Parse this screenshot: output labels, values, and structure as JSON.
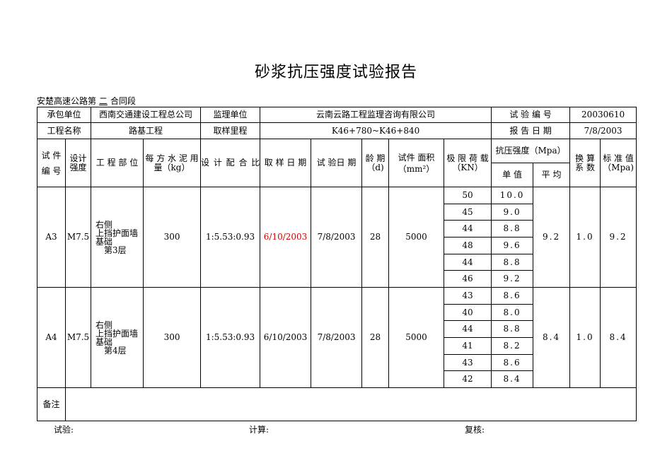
{
  "title": "砂浆抗压强度试验报告",
  "contract": {
    "prefix": "安楚高速公路第",
    "section": "二",
    "suffix": "合同段"
  },
  "info": {
    "contractor_label": "承包单位",
    "contractor": "西南交通建设工程总公司",
    "supervisor_label": "监理单位",
    "supervisor": "云南云路工程监理咨询有限公司",
    "test_no_label": "试 验 编 号",
    "test_no": "20030610",
    "project_label": "工程名称",
    "project": "路基工程",
    "station_label": "取样里程",
    "station": "K46+780~K46+840",
    "report_date_label": "报 告 日 期",
    "report_date": "7/8/2003"
  },
  "headers": {
    "id": "试 件 编 号",
    "grade": "设计 强度",
    "part": "工 程 部 位",
    "cement": "每 方 水 泥 用 量（kg）",
    "ratio": "设 计 配 合 比",
    "sample_date": "取 样 日 期",
    "test_date": "试 验日 期",
    "age": "龄 期（d)",
    "area": "试件 面积 （mm²）",
    "load": "极 限 荷 载（KN）",
    "strength": "抗压强度（Mpa）",
    "single": "单 值",
    "avg": "平 均",
    "factor": "换 算 系 数",
    "std": "标 准 值 （Mpa)"
  },
  "samples": [
    {
      "id": "A3",
      "grade": "M7.5",
      "part": [
        "右侧",
        "上挡护面墙",
        "基础",
        "第3层"
      ],
      "cement": "300",
      "ratio": "1:5.53:0.93",
      "sample_date": "6/10/2003",
      "sample_date_color": "#d00000",
      "test_date": "7/8/2003",
      "age": "28",
      "area": "5000",
      "loads": [
        "50",
        "45",
        "44",
        "48",
        "44",
        "46"
      ],
      "singles": [
        "10.0",
        "9.0",
        "8.8",
        "9.6",
        "8.8",
        "9.2"
      ],
      "avg": "9.2",
      "factor": "1.0",
      "std": "9.2"
    },
    {
      "id": "A4",
      "grade": "M7.5",
      "part": [
        "右侧",
        "上挡护面墙",
        "基础",
        "第4层"
      ],
      "cement": "300",
      "ratio": "1:5.53:0.93",
      "sample_date": "6/10/2003",
      "sample_date_color": "#000000",
      "test_date": "7/8/2003",
      "age": "28",
      "area": "5000",
      "loads": [
        "43",
        "40",
        "44",
        "41",
        "43",
        "42"
      ],
      "singles": [
        "8.6",
        "8.0",
        "8.8",
        "8.2",
        "8.6",
        "8.4"
      ],
      "avg": "8.4",
      "factor": "1.0",
      "std": "8.4"
    }
  ],
  "remarks_label": "备注",
  "remarks": "",
  "footer": {
    "tester": "试验:",
    "calculator": "计算:",
    "reviewer": "复核:"
  }
}
